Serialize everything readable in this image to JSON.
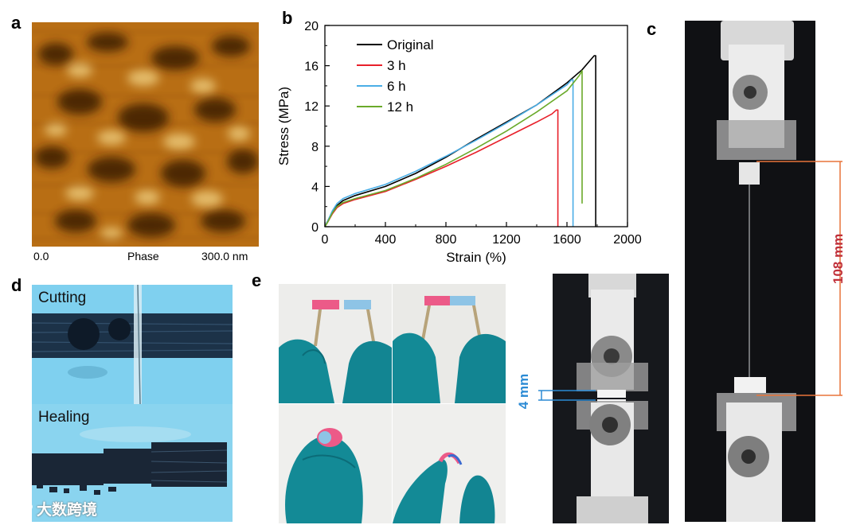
{
  "panels": {
    "a": {
      "label": "a",
      "axis_left": "0.0",
      "channel": "Phase",
      "axis_right": "300.0 nm",
      "colors": {
        "base": "#b86e14",
        "dark": "#3a1c04",
        "light": "#f4d88a"
      }
    },
    "b": {
      "label": "b"
    },
    "c": {
      "label": "c",
      "length_label": "108 mm",
      "length_color": "#c0303a",
      "guide_color": "#e8743a"
    },
    "d": {
      "label": "d",
      "top_caption": "Cutting",
      "bottom_caption": "Healing",
      "bg_color": "#7fd0ef"
    },
    "e": {
      "label": "e",
      "gap_label": "4 mm",
      "gap_color": "#2a8ad4"
    }
  },
  "watermark": {
    "text": "大数跨境",
    "icon": "logo-icon"
  },
  "chart_data": {
    "type": "line",
    "title": "",
    "xlabel": "Strain (%)",
    "ylabel": "Stress (MPa)",
    "xlim": [
      0,
      2000
    ],
    "ylim": [
      0,
      20
    ],
    "xticks": [
      "0",
      "400",
      "800",
      "1200",
      "1600",
      "2000"
    ],
    "yticks": [
      "0",
      "4",
      "8",
      "12",
      "16",
      "20"
    ],
    "legend_position": "top-left",
    "series": [
      {
        "name": "Original",
        "color": "#000000",
        "x": [
          0,
          20,
          50,
          80,
          120,
          200,
          400,
          600,
          800,
          1000,
          1200,
          1400,
          1600,
          1700,
          1780,
          1790,
          1790
        ],
        "y": [
          0,
          0.6,
          1.5,
          2.1,
          2.6,
          3.1,
          4.0,
          5.3,
          6.9,
          8.7,
          10.4,
          12.1,
          14.3,
          15.6,
          17.0,
          17.0,
          0
        ]
      },
      {
        "name": "3   h",
        "color": "#e8202a",
        "x": [
          0,
          20,
          50,
          80,
          120,
          200,
          400,
          600,
          800,
          1000,
          1200,
          1400,
          1500,
          1530,
          1540,
          1540
        ],
        "y": [
          0,
          0.5,
          1.3,
          1.9,
          2.3,
          2.7,
          3.5,
          4.7,
          6.0,
          7.4,
          8.9,
          10.4,
          11.2,
          11.6,
          11.6,
          0
        ]
      },
      {
        "name": "6   h",
        "color": "#4aaee6",
        "x": [
          0,
          20,
          50,
          80,
          120,
          200,
          400,
          600,
          800,
          1000,
          1200,
          1400,
          1600,
          1630,
          1640,
          1640
        ],
        "y": [
          0,
          0.6,
          1.6,
          2.3,
          2.8,
          3.3,
          4.2,
          5.5,
          7.0,
          8.6,
          10.3,
          12.1,
          14.1,
          14.6,
          14.6,
          0
        ]
      },
      {
        "name": "12  h",
        "color": "#6aaa2a",
        "x": [
          0,
          20,
          50,
          80,
          120,
          200,
          400,
          600,
          800,
          1000,
          1200,
          1400,
          1600,
          1680,
          1700,
          1700
        ],
        "y": [
          0,
          0.5,
          1.4,
          2.0,
          2.4,
          2.8,
          3.6,
          4.8,
          6.2,
          7.8,
          9.5,
          11.4,
          13.5,
          15.0,
          15.5,
          2.3
        ]
      }
    ]
  }
}
